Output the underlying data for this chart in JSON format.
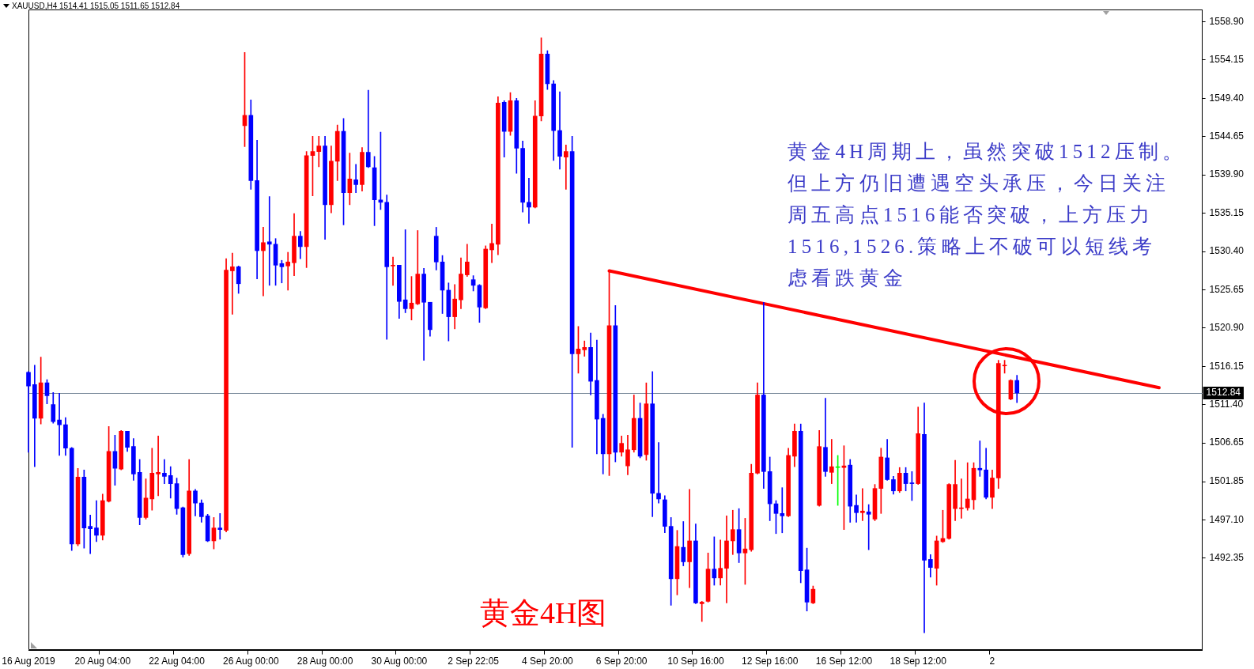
{
  "chart_data": {
    "type": "candlestick",
    "title": "XAUUSD,H4 1514.41 1515.05 1511.65 1512.84",
    "categories": [
      "16 Aug 2019",
      null,
      null,
      null,
      null,
      null,
      null,
      null,
      null,
      null,
      null,
      null,
      "20 Aug 04:00",
      null,
      null,
      null,
      null,
      null,
      null,
      null,
      null,
      null,
      null,
      null,
      "22 Aug 04:00",
      null,
      null,
      null,
      null,
      null,
      null,
      null,
      null,
      null,
      null,
      null,
      "26 Aug 00:00",
      null,
      null,
      null,
      null,
      null,
      null,
      null,
      null,
      null,
      null,
      null,
      "28 Aug 00:00",
      null,
      null,
      null,
      null,
      null,
      null,
      null,
      null,
      null,
      null,
      null,
      "30 Aug 00:00",
      null,
      null,
      null,
      null,
      null,
      null,
      null,
      null,
      null,
      null,
      null,
      "2 Sep 22:05",
      null,
      null,
      null,
      null,
      null,
      null,
      null,
      null,
      null,
      null,
      null,
      "4 Sep 20:00",
      null,
      null,
      null,
      null,
      null,
      null,
      null,
      null,
      null,
      null,
      null,
      "6 Sep 20:00",
      null,
      null,
      null,
      null,
      null,
      null,
      null,
      null,
      null,
      null,
      null,
      "10 Sep 16:00",
      null,
      null,
      null,
      null,
      null,
      null,
      null,
      null,
      null,
      null,
      null,
      "12 Sep 16:00",
      null,
      null,
      null,
      null,
      null,
      null,
      null,
      null,
      null,
      null,
      null,
      "16 Sep 12:00",
      null,
      null,
      null,
      null,
      null,
      null,
      null,
      null,
      null,
      null,
      null,
      "18 Sep 12:00",
      null,
      null,
      null,
      null,
      null,
      null,
      null,
      null,
      null,
      null,
      null,
      "2",
      null,
      null,
      null,
      null,
      null,
      null,
      null,
      null,
      null,
      null,
      null,
      null,
      null,
      null,
      null,
      null,
      null,
      null,
      null,
      null,
      null,
      null,
      null,
      null,
      null,
      null,
      null,
      null,
      null,
      null,
      null,
      null,
      null,
      null
    ],
    "ohlc": [
      [
        1515.4,
        1515.5,
        1505.5,
        1513.7
      ],
      [
        1513.9,
        1516.3,
        1503.7,
        1509.7
      ],
      [
        1509.7,
        1517.3,
        1509.0,
        1514.1
      ],
      [
        1514.1,
        1514.5,
        1511.5,
        1512.5
      ],
      [
        1511.4,
        1512.9,
        1509.1,
        1509.3
      ],
      [
        1509.5,
        1512.8,
        1505.1,
        1508.9
      ],
      [
        1508.9,
        1509.8,
        1505.1,
        1506.0
      ],
      [
        1506.0,
        1506.1,
        1493.3,
        1494.1
      ],
      [
        1494.1,
        1503.5,
        1493.9,
        1502.4
      ],
      [
        1502.4,
        1503.3,
        1493.6,
        1496.1
      ],
      [
        1496.3,
        1497.7,
        1492.9,
        1496.0
      ],
      [
        1496.1,
        1499.5,
        1494.4,
        1495.2
      ],
      [
        1495.2,
        1500.3,
        1494.6,
        1499.5
      ],
      [
        1499.4,
        1508.7,
        1499.3,
        1505.6
      ],
      [
        1505.6,
        1507.6,
        1501.4,
        1503.5
      ],
      [
        1503.4,
        1508.2,
        1503.3,
        1508.1
      ],
      [
        1508.1,
        1508.1,
        1505.6,
        1506.1
      ],
      [
        1506.2,
        1507.2,
        1502.0,
        1502.8
      ],
      [
        1503.0,
        1504.6,
        1496.5,
        1497.4
      ],
      [
        1497.4,
        1502.2,
        1497.2,
        1499.8
      ],
      [
        1499.7,
        1506.0,
        1498.3,
        1502.9
      ],
      [
        1502.8,
        1507.5,
        1500.1,
        1503.0
      ],
      [
        1502.9,
        1504.6,
        1501.6,
        1502.5
      ],
      [
        1502.6,
        1503.7,
        1499.8,
        1501.6
      ],
      [
        1501.6,
        1502.3,
        1497.8,
        1498.5
      ],
      [
        1498.6,
        1498.7,
        1492.5,
        1492.8
      ],
      [
        1492.9,
        1504.6,
        1492.7,
        1500.7
      ],
      [
        1500.7,
        1500.9,
        1497.6,
        1499.2
      ],
      [
        1499.2,
        1499.6,
        1496.8,
        1497.5
      ],
      [
        1497.6,
        1497.8,
        1494.4,
        1494.5
      ],
      [
        1494.5,
        1497.4,
        1493.5,
        1496.1
      ],
      [
        1496.1,
        1497.9,
        1494.7,
        1495.9
      ],
      [
        1495.8,
        1529.5,
        1495.6,
        1528.1
      ],
      [
        1528.0,
        1530.2,
        1522.6,
        1528.5
      ],
      [
        1528.5,
        1528.6,
        1525.2,
        1526.4
      ],
      [
        1546.0,
        1555.1,
        1543.4,
        1547.3
      ],
      [
        1547.3,
        1549.2,
        1538.1,
        1539.2
      ],
      [
        1539.2,
        1544.2,
        1527.0,
        1530.5
      ],
      [
        1530.5,
        1533.4,
        1524.9,
        1531.5
      ],
      [
        1531.6,
        1537.2,
        1526.2,
        1531.3
      ],
      [
        1531.3,
        1532.0,
        1526.2,
        1528.7
      ],
      [
        1528.9,
        1529.3,
        1526.5,
        1528.5
      ],
      [
        1528.6,
        1530.3,
        1525.6,
        1529.1
      ],
      [
        1529.0,
        1535.1,
        1527.4,
        1532.3
      ],
      [
        1532.3,
        1532.9,
        1529.5,
        1531.0
      ],
      [
        1531.0,
        1542.8,
        1528.4,
        1542.3
      ],
      [
        1542.3,
        1544.7,
        1537.3,
        1542.8
      ],
      [
        1542.8,
        1544.7,
        1540.9,
        1543.5
      ],
      [
        1543.5,
        1544.7,
        1531.9,
        1536.2
      ],
      [
        1536.2,
        1543.5,
        1535.2,
        1541.6
      ],
      [
        1541.6,
        1546.1,
        1539.2,
        1545.3
      ],
      [
        1545.3,
        1546.9,
        1533.7,
        1537.7
      ],
      [
        1537.7,
        1542.6,
        1536.2,
        1539.4
      ],
      [
        1539.3,
        1541.2,
        1537.7,
        1538.7
      ],
      [
        1538.7,
        1543.3,
        1537.9,
        1542.7
      ],
      [
        1542.7,
        1550.4,
        1540.8,
        1540.9
      ],
      [
        1540.8,
        1542.2,
        1533.6,
        1536.8
      ],
      [
        1536.8,
        1545.2,
        1535.6,
        1536.5
      ],
      [
        1536.5,
        1537.4,
        1519.5,
        1528.5
      ],
      [
        1528.6,
        1529.7,
        1526.2,
        1528.7
      ],
      [
        1528.7,
        1528.7,
        1522.1,
        1524.2
      ],
      [
        1524.4,
        1533.1,
        1522.8,
        1523.3
      ],
      [
        1523.3,
        1527.3,
        1521.9,
        1524.0
      ],
      [
        1523.9,
        1533.0,
        1523.8,
        1527.6
      ],
      [
        1527.6,
        1528.3,
        1516.9,
        1524.1
      ],
      [
        1524.1,
        1524.1,
        1519.9,
        1520.7
      ],
      [
        1532.3,
        1533.4,
        1528.1,
        1529.1
      ],
      [
        1529.1,
        1529.9,
        1522.7,
        1525.6
      ],
      [
        1525.6,
        1526.5,
        1519.3,
        1522.3
      ],
      [
        1522.3,
        1526.3,
        1520.8,
        1524.5
      ],
      [
        1524.4,
        1529.6,
        1523.3,
        1527.6
      ],
      [
        1527.5,
        1531.3,
        1527.3,
        1529.1
      ],
      [
        1526.9,
        1527.4,
        1525.5,
        1526.2
      ],
      [
        1526.2,
        1526.3,
        1521.6,
        1523.5
      ],
      [
        1523.4,
        1531.1,
        1523.3,
        1530.7
      ],
      [
        1530.6,
        1533.8,
        1529.0,
        1531.4
      ],
      [
        1531.3,
        1549.6,
        1530.0,
        1548.8
      ],
      [
        1548.9,
        1549.1,
        1542.1,
        1545.3
      ],
      [
        1545.3,
        1550.1,
        1544.8,
        1549.1
      ],
      [
        1549.1,
        1549.4,
        1540.1,
        1543.2
      ],
      [
        1543.2,
        1544.1,
        1535.3,
        1536.5
      ],
      [
        1536.5,
        1539.5,
        1533.9,
        1535.9
      ],
      [
        1535.9,
        1549.1,
        1535.8,
        1547.2
      ],
      [
        1547.2,
        1556.9,
        1546.6,
        1554.9
      ],
      [
        1554.9,
        1555.3,
        1550.5,
        1551.2
      ],
      [
        1551.2,
        1551.6,
        1541.7,
        1545.4
      ],
      [
        1545.4,
        1550.2,
        1540.6,
        1542.2
      ],
      [
        1542.1,
        1543.6,
        1538.1,
        1542.8
      ],
      [
        1542.8,
        1544.7,
        1506.1,
        1517.7
      ],
      [
        1517.7,
        1521.1,
        1515.3,
        1518.3
      ],
      [
        1518.2,
        1519.3,
        1517.4,
        1518.5
      ],
      [
        1518.5,
        1520.3,
        1512.6,
        1514.3
      ],
      [
        1514.4,
        1519.4,
        1505.3,
        1509.6
      ],
      [
        1509.7,
        1510.2,
        1502.8,
        1505.3
      ],
      [
        1505.3,
        1528.0,
        1502.6,
        1521.2
      ],
      [
        1521.2,
        1523.7,
        1504.3,
        1505.5
      ],
      [
        1505.5,
        1507.5,
        1505.0,
        1506.6
      ],
      [
        1503.8,
        1507.6,
        1502.7,
        1505.8
      ],
      [
        1505.8,
        1512.6,
        1505.5,
        1509.7
      ],
      [
        1509.7,
        1511.6,
        1504.8,
        1505.0
      ],
      [
        1505.2,
        1514.1,
        1504.5,
        1511.5
      ],
      [
        1511.5,
        1515.5,
        1497.5,
        1500.4
      ],
      [
        1500.4,
        1506.7,
        1499.2,
        1499.7
      ],
      [
        1499.6,
        1500.1,
        1495.5,
        1496.3
      ],
      [
        1496.3,
        1497.4,
        1486.5,
        1489.8
      ],
      [
        1489.8,
        1495.8,
        1487.8,
        1493.8
      ],
      [
        1493.7,
        1496.9,
        1491.4,
        1491.9
      ],
      [
        1491.9,
        1500.9,
        1488.7,
        1494.5
      ],
      [
        1494.5,
        1496.6,
        1486.7,
        1486.8
      ],
      [
        1486.7,
        1487.0,
        1484.5,
        1486.9
      ],
      [
        1487.0,
        1493.0,
        1486.9,
        1491.0
      ],
      [
        1491.0,
        1495.0,
        1489.0,
        1489.9
      ],
      [
        1489.9,
        1494.6,
        1489.0,
        1491.1
      ],
      [
        1491.1,
        1497.6,
        1486.8,
        1494.5
      ],
      [
        1494.5,
        1498.3,
        1492.8,
        1495.9
      ],
      [
        1495.9,
        1498.5,
        1491.8,
        1493.0
      ],
      [
        1493.0,
        1497.3,
        1489.1,
        1493.5
      ],
      [
        1493.4,
        1504.0,
        1493.2,
        1502.9
      ],
      [
        1502.9,
        1514.1,
        1502.8,
        1512.6
      ],
      [
        1512.6,
        1524.1,
        1501.0,
        1503.1
      ],
      [
        1503.1,
        1504.9,
        1497.0,
        1499.1
      ],
      [
        1499.1,
        1499.5,
        1495.4,
        1497.9
      ],
      [
        1497.9,
        1501.1,
        1495.5,
        1497.6
      ],
      [
        1497.6,
        1506.0,
        1497.5,
        1505.1
      ],
      [
        1505.0,
        1509.0,
        1503.7,
        1508.1
      ],
      [
        1508.1,
        1509.0,
        1489.3,
        1490.8
      ],
      [
        1490.9,
        1493.6,
        1485.8,
        1486.9
      ],
      [
        1486.8,
        1488.9,
        1486.7,
        1488.5
      ],
      [
        1498.9,
        1508.2,
        1498.8,
        1506.2
      ],
      [
        1506.1,
        1512.2,
        1502.5,
        1503.1
      ],
      [
        1503.0,
        1507.1,
        1501.6,
        1503.7
      ],
      [
        1503.6,
        1505.1,
        1498.9,
        1503.6
      ],
      [
        1503.6,
        1506.3,
        1495.9,
        1503.8
      ],
      [
        1503.9,
        1504.6,
        1496.8,
        1498.8
      ],
      [
        1498.9,
        1500.2,
        1496.8,
        1498.0
      ],
      [
        1498.0,
        1501.0,
        1497.0,
        1498.2
      ],
      [
        1498.1,
        1499.0,
        1493.4,
        1497.8
      ],
      [
        1497.2,
        1501.5,
        1497.0,
        1501.0
      ],
      [
        1501.0,
        1506.0,
        1497.9,
        1504.9
      ],
      [
        1504.8,
        1507.1,
        1502.0,
        1502.1
      ],
      [
        1502.1,
        1502.5,
        1500.3,
        1500.7
      ],
      [
        1500.7,
        1503.6,
        1500.5,
        1502.9
      ],
      [
        1502.9,
        1503.6,
        1500.7,
        1501.6
      ],
      [
        1501.7,
        1503.1,
        1499.5,
        1501.6
      ],
      [
        1501.6,
        1511.1,
        1501.5,
        1507.8
      ],
      [
        1507.7,
        1511.6,
        1483.1,
        1492.1
      ],
      [
        1492.2,
        1492.8,
        1490.0,
        1491.2
      ],
      [
        1491.1,
        1495.1,
        1489.0,
        1494.5
      ],
      [
        1494.4,
        1498.3,
        1494.3,
        1494.8
      ],
      [
        1494.8,
        1501.6,
        1494.7,
        1501.5
      ],
      [
        1498.5,
        1504.5,
        1497.0,
        1501.5
      ],
      [
        1498.5,
        1502.2,
        1497.3,
        1498.6
      ],
      [
        1498.6,
        1504.2,
        1498.3,
        1499.7
      ],
      [
        1499.6,
        1504.2,
        1498.4,
        1503.5
      ],
      [
        1503.5,
        1506.9,
        1502.5,
        1503.3
      ],
      [
        1503.3,
        1506.0,
        1499.7,
        1499.9
      ],
      [
        1499.9,
        1503.3,
        1498.5,
        1502.3
      ],
      [
        1502.3,
        1516.9,
        1501.0,
        1516.5
      ],
      [
        1516.2,
        1516.9,
        1515.3,
        1516.3
      ],
      [
        1512.1,
        1514.5,
        1512.0,
        1514.4
      ],
      [
        1514.41,
        1515.05,
        1511.65,
        1512.84
      ],
      null,
      null,
      null,
      null,
      null,
      null,
      null,
      null,
      null,
      null,
      null,
      null,
      null,
      null,
      null,
      null,
      null,
      null,
      null,
      null,
      null,
      null,
      null,
      null,
      null,
      null,
      null,
      null,
      null,
      null
    ],
    "colors": [
      "#0000ff",
      "#0000ff",
      "#ff0000",
      "#0000ff",
      "#0000ff",
      "#0000ff",
      "#0000ff",
      "#0000ff",
      "#ff0000",
      "#0000ff",
      "#0000ff",
      "#0000ff",
      "#ff0000",
      "#ff0000",
      "#0000ff",
      "#ff0000",
      "#0000ff",
      "#0000ff",
      "#0000ff",
      "#ff0000",
      "#ff0000",
      "#ff0000",
      "#0000ff",
      "#0000ff",
      "#0000ff",
      "#0000ff",
      "#ff0000",
      "#0000ff",
      "#0000ff",
      "#0000ff",
      "#ff0000",
      "#0000ff",
      "#ff0000",
      "#ff0000",
      "#0000ff",
      "#ff0000",
      "#0000ff",
      "#0000ff",
      "#ff0000",
      "#0000ff",
      "#0000ff",
      "#0000ff",
      "#ff0000",
      "#ff0000",
      "#0000ff",
      "#ff0000",
      "#ff0000",
      "#ff0000",
      "#0000ff",
      "#ff0000",
      "#ff0000",
      "#0000ff",
      "#ff0000",
      "#0000ff",
      "#ff0000",
      "#0000ff",
      "#0000ff",
      "#0000ff",
      "#0000ff",
      "#ff0000",
      "#0000ff",
      "#0000ff",
      "#ff0000",
      "#ff0000",
      "#0000ff",
      "#0000ff",
      "#0000ff",
      "#0000ff",
      "#0000ff",
      "#ff0000",
      "#ff0000",
      "#ff0000",
      "#0000ff",
      "#0000ff",
      "#ff0000",
      "#ff0000",
      "#ff0000",
      "#0000ff",
      "#ff0000",
      "#0000ff",
      "#0000ff",
      "#0000ff",
      "#ff0000",
      "#ff0000",
      "#0000ff",
      "#0000ff",
      "#0000ff",
      "#ff0000",
      "#0000ff",
      "#ff0000",
      "#ff0000",
      "#0000ff",
      "#0000ff",
      "#0000ff",
      "#ff0000",
      "#0000ff",
      "#ff0000",
      "#ff0000",
      "#ff0000",
      "#0000ff",
      "#ff0000",
      "#0000ff",
      "#0000ff",
      "#0000ff",
      "#0000ff",
      "#ff0000",
      "#0000ff",
      "#ff0000",
      "#0000ff",
      "#ff0000",
      "#ff0000",
      "#0000ff",
      "#ff0000",
      "#ff0000",
      "#ff0000",
      "#0000ff",
      "#ff0000",
      "#ff0000",
      "#ff0000",
      "#0000ff",
      "#0000ff",
      "#0000ff",
      "#0000ff",
      "#ff0000",
      "#ff0000",
      "#0000ff",
      "#0000ff",
      "#ff0000",
      "#ff0000",
      "#0000ff",
      "#ff0000",
      "#00ff00",
      "#ff0000",
      "#0000ff",
      "#0000ff",
      "#ff0000",
      "#0000ff",
      "#ff0000",
      "#ff0000",
      "#0000ff",
      "#0000ff",
      "#ff0000",
      "#0000ff",
      "#0000ff",
      "#ff0000",
      "#0000ff",
      "#0000ff",
      "#ff0000",
      "#ff0000",
      "#ff0000",
      "#ff0000",
      "#ff0000",
      "#ff0000",
      "#ff0000",
      "#0000ff",
      "#0000ff",
      "#ff0000",
      "#ff0000",
      "#ff0000",
      "#ff0000",
      "#0000ff",
      null,
      null,
      null,
      null,
      null,
      null,
      null,
      null,
      null,
      null,
      null,
      null,
      null,
      null,
      null,
      null,
      null,
      null,
      null,
      null,
      null,
      null,
      null,
      null,
      null,
      null,
      null,
      null,
      null,
      null
    ],
    "series": [
      {
        "type": "line",
        "color": "#ff0000",
        "values": [
          null,
          null,
          null,
          null,
          null,
          null,
          null,
          null,
          null,
          null,
          null,
          null,
          null,
          null,
          null,
          null,
          null,
          null,
          null,
          null,
          null,
          null,
          null,
          null,
          null,
          null,
          null,
          null,
          null,
          null,
          null,
          null,
          null,
          null,
          null,
          null,
          null,
          null,
          null,
          null,
          null,
          null,
          null,
          null,
          null,
          null,
          null,
          null,
          null,
          null,
          null,
          null,
          null,
          null,
          null,
          null,
          null,
          null,
          null,
          null,
          null,
          null,
          null,
          null,
          null,
          null,
          null,
          null,
          null,
          null,
          null,
          null,
          null,
          null,
          null,
          null,
          null,
          null,
          null,
          null,
          null,
          null,
          null,
          null,
          null,
          null,
          null,
          null,
          null,
          null,
          null,
          null,
          null,
          null,
          1528.0,
          null,
          null,
          null,
          null,
          null,
          null,
          null,
          null,
          null,
          null,
          null,
          null,
          null,
          null,
          null,
          null,
          null,
          null,
          null,
          null,
          null,
          null,
          null,
          null,
          null,
          null,
          null,
          null,
          null,
          null,
          null,
          null,
          null,
          null,
          null,
          null,
          null,
          null,
          null,
          null,
          null,
          null,
          null,
          null,
          null,
          null,
          null,
          null,
          null,
          null,
          null,
          null,
          null,
          null,
          null,
          null,
          null,
          null,
          null,
          null,
          null,
          null,
          null,
          null,
          null,
          null,
          null,
          null,
          null,
          null,
          null,
          null,
          null,
          null,
          null,
          null,
          null,
          null,
          null,
          null,
          null,
          null,
          null,
          null,
          null,
          null,
          null,
          null,
          1513.5,
          null,
          null,
          null,
          null,
          null,
          null,
          null
        ]
      }
    ],
    "marker": "none",
    "ylim": [
      1480.9,
      1560.4
    ],
    "yticks": [
      1492.35,
      {
        "value": 1497.1,
        "label": "1497.10"
      },
      1501.85,
      1506.65,
      {
        "value": 1511.4,
        "label": "1511.40"
      },
      1516.15,
      {
        "value": 1520.9,
        "label": "1520.90"
      },
      1525.65,
      {
        "value": 1530.4,
        "label": "1530.40"
      },
      1535.15,
      {
        "value": 1539.9,
        "label": "1539.90"
      },
      1544.65,
      {
        "value": 1549.4,
        "label": "1549.40"
      },
      1554.15,
      {
        "value": 1558.9,
        "label": "1558.90"
      }
    ],
    "ref_lines": [
      {
        "axis": "y",
        "value": 1512.84,
        "label": "1512.84",
        "color": "#778899"
      }
    ],
    "annotations": [
      "黄金4H周期上，虽然突破1512压制。",
      "但上方仍旧遭遇空头承压，今日关注",
      "周五高点1516能否突破，上方压力",
      "1516,1526.策略上不破可以短线考",
      "虑看跌黄金",
      "黄金4H图"
    ]
  }
}
